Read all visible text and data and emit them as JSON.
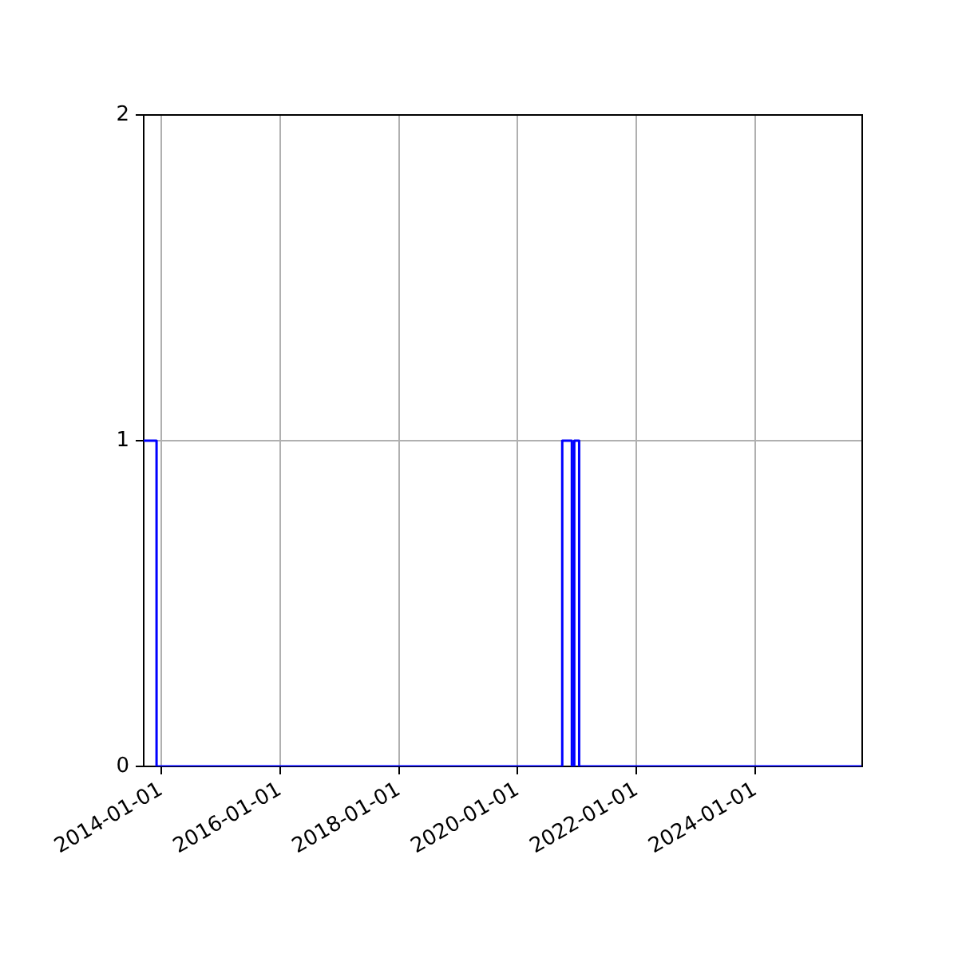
{
  "chart_data": {
    "type": "step",
    "x": [
      "2013-09-15",
      "2013-12-03",
      "2020-10-01",
      "2020-11-29",
      "2020-12-14",
      "2021-01-13",
      "2025-10-19"
    ],
    "values": [
      1,
      0,
      1,
      0,
      1,
      0,
      0
    ],
    "color": "#0000ff",
    "xlim": [
      "2013-09-15",
      "2025-10-19"
    ],
    "xticks": [
      "2014-01-01",
      "2016-01-01",
      "2018-01-01",
      "2020-01-01",
      "2022-01-01",
      "2024-01-01"
    ],
    "ylim": [
      0,
      2
    ],
    "yticks": [
      0,
      1,
      2
    ],
    "grid": true
  }
}
